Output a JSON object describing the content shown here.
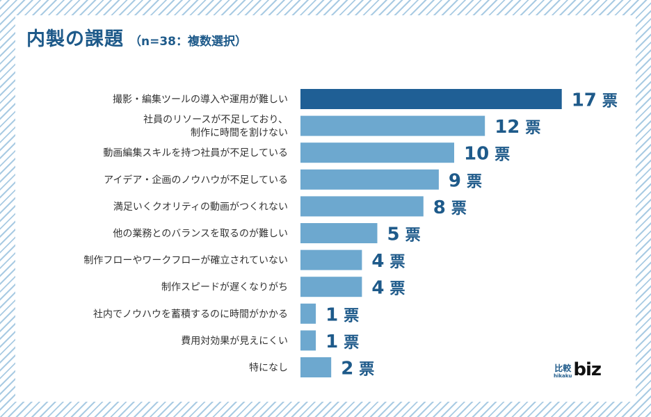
{
  "chart_data": {
    "type": "bar",
    "orientation": "horizontal",
    "title": "内製の課題",
    "subtitle": "（n=38：複数選択）",
    "unit": "票",
    "categories": [
      [
        "撮影・編集ツールの導入や運用が難しい"
      ],
      [
        "社員のリソースが不足しており、",
        "制作に時間を割けない"
      ],
      [
        "動画編集スキルを持つ社員が不足している"
      ],
      [
        "アイデア・企画のノウハウが不足している"
      ],
      [
        "満足いくクオリティの動画がつくれない"
      ],
      [
        "他の業務とのバランスを取るのが難しい"
      ],
      [
        "制作フローやワークフローが確立されていない"
      ],
      [
        "制作スピードが遅くなりがち"
      ],
      [
        "社内でノウハウを蓄積するのに時間がかかる"
      ],
      [
        "費用対効果が見えにくい"
      ],
      [
        "特になし"
      ]
    ],
    "values": [
      17,
      12,
      10,
      9,
      8,
      5,
      4,
      4,
      1,
      1,
      2
    ],
    "highlight_index": 0,
    "colors": {
      "highlight_bar": "#1f5f95",
      "bar": "#6da8cf",
      "label": "#1e5a8a"
    }
  },
  "logo": {
    "kanji": "比較",
    "roman": "hikaku",
    "biz": "biz"
  }
}
